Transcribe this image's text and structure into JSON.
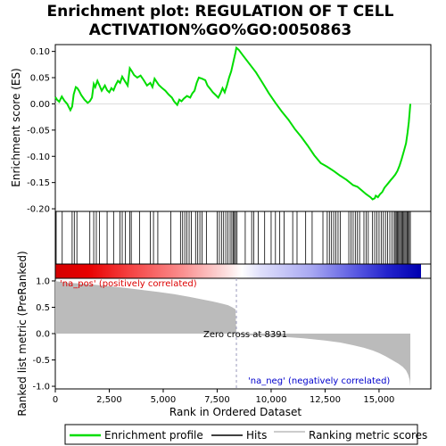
{
  "chart_data": {
    "type": "line",
    "title": "Enrichment plot: REGULATION OF T CELL ACTIVATION%GO%GO:0050863",
    "title_lines": [
      "Enrichment plot: REGULATION OF T CELL",
      "ACTIVATION%GO%GO:0050863"
    ],
    "xlabel": "Rank in Ordered Dataset",
    "es_panel": {
      "ylabel": "Enrichment score (ES)",
      "ylim": [
        -0.205,
        0.113
      ],
      "yticks": [
        0.1,
        0.05,
        0.0,
        -0.05,
        -0.1,
        -0.15,
        -0.2
      ],
      "ytick_labels": [
        "0.10",
        "0.05",
        "0.00",
        "-0.05",
        "-0.10",
        "-0.15",
        "-0.20"
      ],
      "line_color": "#00dd00",
      "series": [
        {
          "name": "Enrichment profile",
          "x": [
            0,
            80,
            180,
            300,
            420,
            550,
            700,
            780,
            850,
            950,
            1020,
            1100,
            1200,
            1350,
            1500,
            1600,
            1700,
            1780,
            1850,
            1950,
            2050,
            2150,
            2300,
            2400,
            2500,
            2600,
            2700,
            2800,
            2900,
            3000,
            3100,
            3200,
            3350,
            3450,
            3550,
            3650,
            3800,
            3950,
            4100,
            4250,
            4400,
            4500,
            4600,
            4700,
            4800,
            4950,
            5100,
            5250,
            5400,
            5500,
            5650,
            5750,
            5850,
            5950,
            6100,
            6250,
            6350,
            6450,
            6550,
            6650,
            6800,
            6950,
            7050,
            7150,
            7300,
            7450,
            7550,
            7650,
            7750,
            7850,
            7950,
            8050,
            8150,
            8250,
            8350,
            8391,
            8500,
            8700,
            9000,
            9300,
            9600,
            9900,
            10200,
            10500,
            10800,
            11100,
            11400,
            11700,
            12000,
            12300,
            12600,
            12900,
            13200,
            13500,
            13800,
            14000,
            14200,
            14400,
            14600,
            14700,
            14800,
            14850,
            14950,
            15050,
            15150,
            15250,
            15350,
            15450,
            15550,
            15650,
            15750,
            15850,
            15950,
            16050,
            16150,
            16250,
            16320,
            16380,
            16420,
            16450
          ],
          "values": [
            0.013,
            0.008,
            0.004,
            0.014,
            0.006,
            0.0,
            -0.012,
            -0.005,
            0.018,
            0.032,
            0.03,
            0.025,
            0.017,
            0.008,
            0.002,
            0.005,
            0.012,
            0.038,
            0.032,
            0.044,
            0.035,
            0.025,
            0.035,
            0.026,
            0.022,
            0.03,
            0.026,
            0.036,
            0.044,
            0.04,
            0.052,
            0.045,
            0.035,
            0.068,
            0.062,
            0.055,
            0.05,
            0.054,
            0.045,
            0.035,
            0.04,
            0.032,
            0.048,
            0.042,
            0.036,
            0.03,
            0.025,
            0.018,
            0.012,
            0.005,
            -0.002,
            0.008,
            0.005,
            0.01,
            0.015,
            0.012,
            0.02,
            0.025,
            0.04,
            0.05,
            0.048,
            0.045,
            0.035,
            0.03,
            0.022,
            0.016,
            0.012,
            0.02,
            0.03,
            0.022,
            0.035,
            0.05,
            0.062,
            0.08,
            0.098,
            0.107,
            0.103,
            0.092,
            0.076,
            0.06,
            0.04,
            0.02,
            0.002,
            -0.015,
            -0.03,
            -0.048,
            -0.063,
            -0.08,
            -0.098,
            -0.113,
            -0.12,
            -0.128,
            -0.137,
            -0.145,
            -0.155,
            -0.158,
            -0.165,
            -0.172,
            -0.178,
            -0.182,
            -0.18,
            -0.175,
            -0.178,
            -0.172,
            -0.168,
            -0.16,
            -0.155,
            -0.15,
            -0.145,
            -0.14,
            -0.135,
            -0.128,
            -0.118,
            -0.105,
            -0.09,
            -0.075,
            -0.055,
            -0.035,
            -0.015,
            0.0
          ]
        }
      ]
    },
    "hits": {
      "name": "Hits",
      "positions": [
        40,
        320,
        780,
        880,
        1000,
        1600,
        1780,
        1900,
        2050,
        2400,
        2700,
        3000,
        3100,
        3250,
        3450,
        3520,
        3900,
        4400,
        4550,
        4750,
        5350,
        5800,
        5900,
        6000,
        6100,
        6200,
        6300,
        6500,
        6600,
        6700,
        6800,
        7000,
        7500,
        7600,
        7700,
        7800,
        7900,
        8000,
        8100,
        8180,
        8250,
        8300,
        8350,
        8420,
        8800,
        9100,
        9200,
        9400,
        9700,
        10000,
        10200,
        10400,
        10600,
        11000,
        11200,
        11600,
        11900,
        12400,
        12600,
        12700,
        12800,
        12900,
        13000,
        13100,
        13200,
        13600,
        13700,
        13800,
        13900,
        14000,
        14100,
        14300,
        14400,
        14500,
        14700,
        14800,
        14900,
        15000,
        15100,
        15200,
        15300,
        15400,
        15500,
        15600,
        15700,
        15750,
        15800,
        15850,
        15900,
        15950,
        16000,
        16050,
        16100,
        16150,
        16200,
        16250,
        16300,
        16350,
        16400,
        16450
      ]
    },
    "rank_bar": {
      "label_pos": "'na_pos' (positively correlated)",
      "label_neg": "'na_neg' (negatively correlated)",
      "zero_cross_label": "Zero cross at 8391",
      "zero_cross": 8391
    },
    "metric_panel": {
      "ylabel": "Ranked list metric (PreRanked)",
      "ylim": [
        -1.05,
        1.05
      ],
      "yticks": [
        1.0,
        0.5,
        0.0,
        -0.5,
        -1.0
      ],
      "ytick_labels": [
        "1.0",
        "0.5",
        "0.0",
        "-0.5",
        "-1.0"
      ],
      "fill_color": "#bbbbbb",
      "series": [
        {
          "name": "Ranking metric scores",
          "x": [
            0,
            100,
            300,
            700,
            1200,
            1800,
            2500,
            3200,
            4000,
            4800,
            5500,
            6200,
            6800,
            7300,
            7700,
            8000,
            8200,
            8350,
            8391,
            8500,
            9500,
            10500,
            11500,
            12500,
            13200,
            13800,
            14300,
            14700,
            15000,
            15300,
            15600,
            15900,
            16100,
            16250,
            16350,
            16420,
            16450
          ],
          "values": [
            1.0,
            0.99,
            0.98,
            0.96,
            0.95,
            0.93,
            0.9,
            0.87,
            0.83,
            0.79,
            0.75,
            0.7,
            0.65,
            0.61,
            0.57,
            0.54,
            0.5,
            0.46,
            0.0,
            -0.02,
            -0.04,
            -0.06,
            -0.09,
            -0.13,
            -0.17,
            -0.22,
            -0.27,
            -0.32,
            -0.37,
            -0.43,
            -0.5,
            -0.57,
            -0.63,
            -0.7,
            -0.78,
            -0.88,
            -1.0
          ]
        }
      ]
    },
    "x_range": [
      0,
      17400
    ],
    "xticks": [
      0,
      2500,
      5000,
      7500,
      10000,
      12500,
      15000
    ],
    "xtick_labels": [
      "0",
      "2,500",
      "5,000",
      "7,500",
      "10,000",
      "12,500",
      "15,000"
    ],
    "legend": {
      "placement": "bottom",
      "entries": [
        {
          "name": "Enrichment profile",
          "color": "#00dd00"
        },
        {
          "name": "Hits",
          "color": "#000000"
        },
        {
          "name": "Ranking metric scores",
          "color": "#bbbbbb"
        }
      ]
    }
  }
}
